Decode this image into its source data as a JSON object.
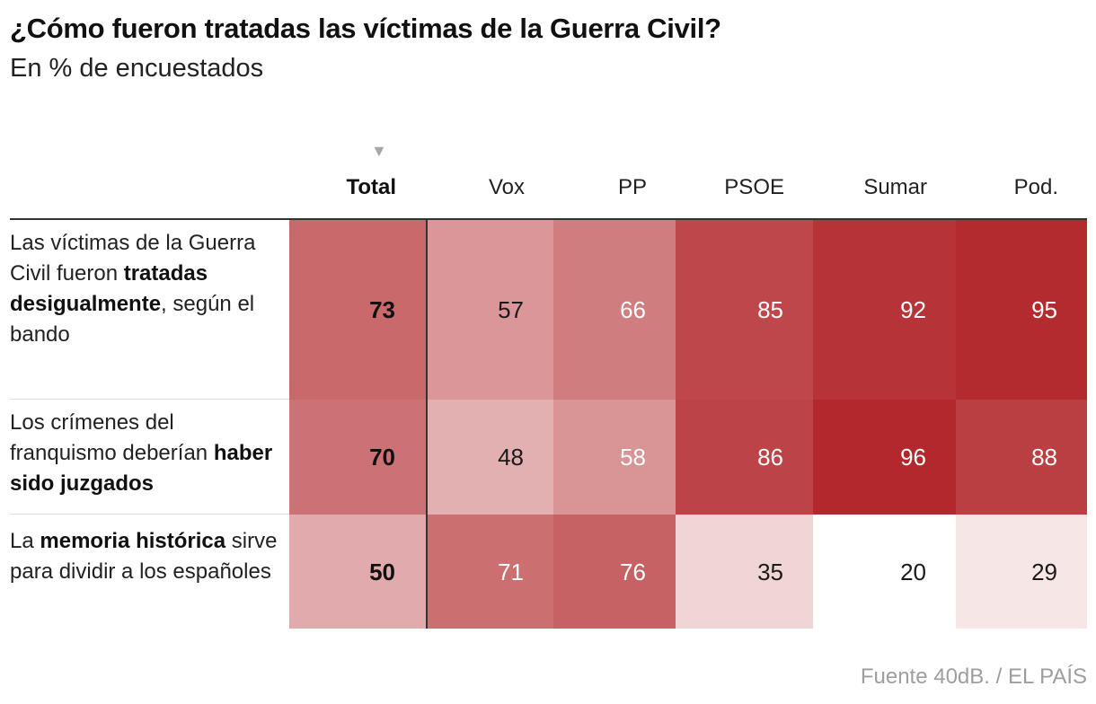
{
  "chart_data": {
    "type": "table",
    "title": "¿Cómo fueron tratadas las víctimas de la Guerra Civil?",
    "subtitle": "En % de encuestados",
    "columns": [
      "Total",
      "Vox",
      "PP",
      "PSOE",
      "Sumar",
      "Pod."
    ],
    "sorted_column": "Total",
    "rows": [
      {
        "label_parts": [
          {
            "text": "Las víctimas de la Guerra Civil fueron ",
            "bold": false
          },
          {
            "text": "tratadas desigualmente",
            "bold": true
          },
          {
            "text": ", según el bando",
            "bold": false
          }
        ],
        "values": [
          73,
          57,
          66,
          85,
          92,
          95
        ]
      },
      {
        "label_parts": [
          {
            "text": "Los crímenes del franquismo deberían ",
            "bold": false
          },
          {
            "text": "haber sido juzgados",
            "bold": true
          }
        ],
        "values": [
          70,
          48,
          58,
          86,
          96,
          88
        ]
      },
      {
        "label_parts": [
          {
            "text": "La ",
            "bold": false
          },
          {
            "text": "memoria histórica",
            "bold": true
          },
          {
            "text": " sirve para dividir a los españoles",
            "bold": false
          }
        ],
        "values": [
          50,
          71,
          76,
          35,
          20,
          29
        ]
      }
    ],
    "color_scale": {
      "low": "#ffffff",
      "high": "#b2282c",
      "min": 20,
      "max": 96
    }
  },
  "source": "Fuente 40dB. / EL PAÍS",
  "sort_indicator": "▼"
}
